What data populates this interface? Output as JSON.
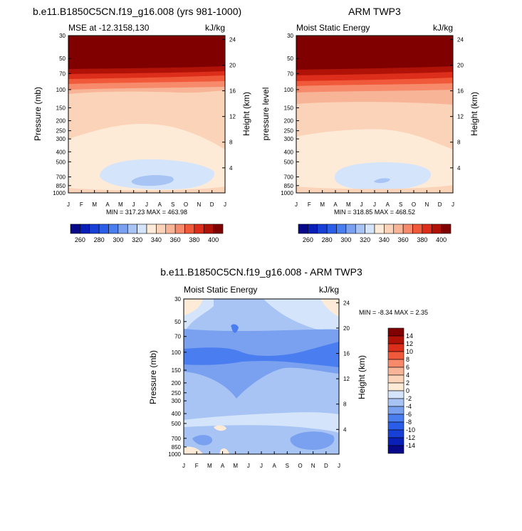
{
  "figure": {
    "months": [
      "J",
      "F",
      "M",
      "A",
      "M",
      "J",
      "J",
      "A",
      "S",
      "O",
      "N",
      "D",
      "J"
    ],
    "pressure_ticks": [
      "30",
      "50",
      "70",
      "100",
      "150",
      "200",
      "250",
      "300",
      "400",
      "500",
      "700",
      "850",
      "1000"
    ],
    "pressure_values": [
      30,
      50,
      70,
      100,
      150,
      200,
      250,
      300,
      400,
      500,
      700,
      850,
      1000
    ],
    "height_ticks": [
      "24",
      "20",
      "16",
      "12",
      "8",
      "4"
    ],
    "height_values": [
      24,
      20,
      16,
      12,
      8,
      4
    ]
  },
  "chart_data": [
    {
      "type": "heatmap",
      "title": "b.e11.B1850C5CN.f19_g16.008 (yrs 981-1000)",
      "left_label": "MSE at -12.3158,130",
      "right_label": "kJ/kg",
      "ylabel": "Pressure (mb)",
      "ylabel_right": "Height (km)",
      "minmax": "MIN = 317.23 MAX = 463.98",
      "min": 317.23,
      "max": 463.98,
      "colorbar_levels": [
        260,
        270,
        280,
        290,
        300,
        310,
        320,
        330,
        340,
        350,
        360,
        370,
        380,
        390,
        400
      ],
      "colorbar_labels": [
        "260",
        "280",
        "300",
        "320",
        "340",
        "360",
        "380",
        "400"
      ]
    },
    {
      "type": "heatmap",
      "title": "ARM TWP3",
      "left_label": "Moist Static Energy",
      "right_label": "kJ/kg",
      "ylabel": "pressure level",
      "ylabel_right": "Height (km)",
      "minmax": "MIN = 318.85 MAX = 468.52",
      "min": 318.85,
      "max": 468.52,
      "colorbar_levels": [
        260,
        270,
        280,
        290,
        300,
        310,
        320,
        330,
        340,
        350,
        360,
        370,
        380,
        390,
        400
      ],
      "colorbar_labels": [
        "260",
        "280",
        "300",
        "320",
        "340",
        "360",
        "380",
        "400"
      ]
    },
    {
      "type": "heatmap",
      "title": "b.e11.B1850C5CN.f19_g16.008 - ARM TWP3",
      "left_label": "Moist Static Energy",
      "right_label": "kJ/kg",
      "ylabel": "Pressure (mb)",
      "ylabel_right": "Height (km)",
      "minmax": "MIN =  -8.34 MAX =   2.35",
      "min": -8.34,
      "max": 2.35,
      "colorbar_levels": [
        14,
        12,
        10,
        8,
        6,
        4,
        2,
        0,
        -2,
        -4,
        -6,
        -8,
        -10,
        -12,
        -14
      ],
      "colorbar_labels": [
        "14",
        "12",
        "10",
        "8",
        "6",
        "4",
        "2",
        "0",
        "-2",
        "-4",
        "-6",
        "-8",
        "-10",
        "-12",
        "-14"
      ]
    }
  ],
  "colors": {
    "abs_palette": [
      "#08088a",
      "#0a1fb8",
      "#1840d6",
      "#2a5ee8",
      "#4a7ef0",
      "#7aa0f0",
      "#a8c4f5",
      "#d4e4fa",
      "#fdebd8",
      "#fbd3b8",
      "#f8b497",
      "#f68a6a",
      "#f05a3a",
      "#dc2e1a",
      "#b01208",
      "#800000"
    ],
    "diff_palette": [
      "#800000",
      "#b01208",
      "#dc2e1a",
      "#f05a3a",
      "#f68a6a",
      "#f8b497",
      "#fbd3b8",
      "#fdebd8",
      "#d4e4fa",
      "#a8c4f5",
      "#7aa0f0",
      "#4a7ef0",
      "#2a5ee8",
      "#1840d6",
      "#0a1fb8",
      "#08088a"
    ]
  }
}
